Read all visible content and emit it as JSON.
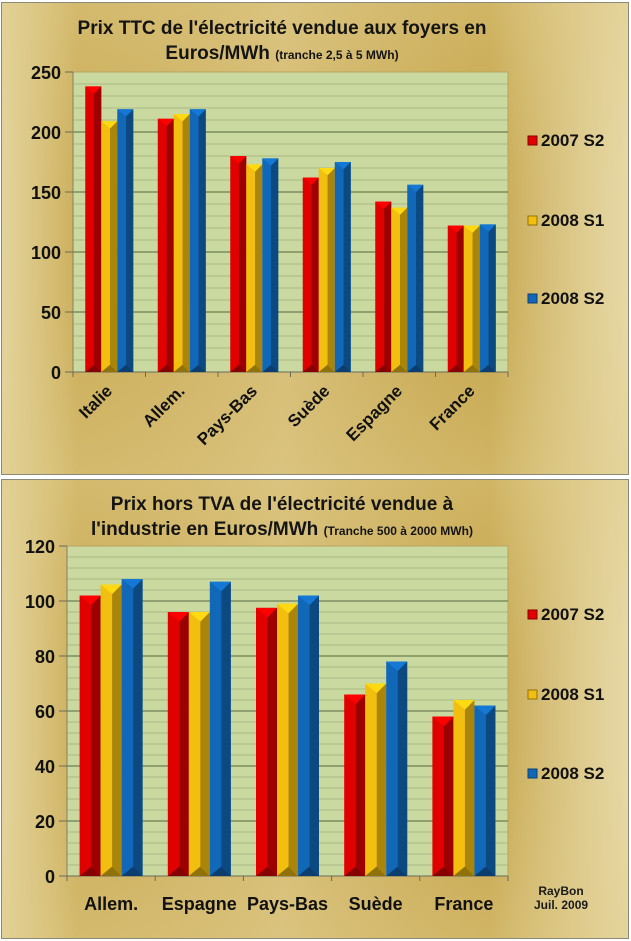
{
  "chart_data": [
    {
      "type": "bar",
      "title": "Prix TTC de l'électricité vendue aux foyers en Euros/MWh",
      "title_line1": "Prix TTC de l'électricité vendue aux foyers en",
      "title_line2": "Euros/MWh",
      "subtitle": "(tranche 2,5 à 5 MWh)",
      "xlabel": "",
      "ylabel": "",
      "ylim": [
        0,
        250
      ],
      "yticks": [
        0,
        50,
        100,
        150,
        200,
        250
      ],
      "ytick_labels": [
        "0",
        "50",
        "100",
        "150",
        "200",
        "250"
      ],
      "grid": true,
      "legend_position": "right",
      "categories": [
        "Italie",
        "Allem.",
        "Pays-Bas",
        "Suède",
        "Espagne",
        "France"
      ],
      "series": [
        {
          "name": "2007 S2",
          "color": "#e00000",
          "values": [
            238,
            211,
            180,
            162,
            142,
            122
          ]
        },
        {
          "name": "2008 S1",
          "color": "#f2be10",
          "values": [
            209,
            215,
            173,
            170,
            137,
            122
          ]
        },
        {
          "name": "2008 S2",
          "color": "#1268b8",
          "values": [
            219,
            219,
            178,
            175,
            156,
            123
          ]
        }
      ]
    },
    {
      "type": "bar",
      "title": "Prix hors TVA de l'électricité vendue à l'industrie en Euros/MWh",
      "title_line1": "Prix hors TVA de l'électricité vendue à",
      "title_line2": "l'industrie en Euros/MWh",
      "subtitle": "(Tranche 500 à 2000 MWh)",
      "xlabel": "",
      "ylabel": "",
      "ylim": [
        0,
        120
      ],
      "yticks": [
        0,
        20,
        40,
        60,
        80,
        100,
        120
      ],
      "ytick_labels": [
        "0",
        "20",
        "40",
        "60",
        "80",
        "100",
        "120"
      ],
      "grid": true,
      "legend_position": "right",
      "categories": [
        "Allem.",
        "Espagne",
        "Pays-Bas",
        "Suède",
        "France"
      ],
      "series": [
        {
          "name": "2007 S2",
          "color": "#e00000",
          "values": [
            102,
            96,
            97.5,
            66,
            58
          ]
        },
        {
          "name": "2008 S1",
          "color": "#f2be10",
          "values": [
            106,
            96,
            99,
            70,
            64
          ]
        },
        {
          "name": "2008 S2",
          "color": "#1268b8",
          "values": [
            108,
            107,
            102,
            78,
            62
          ]
        }
      ]
    }
  ],
  "credit": {
    "author": "RayBon",
    "date": "Juil. 2009"
  },
  "colors": {
    "plot_bg": "#c9d9a0",
    "grid": "#9fae7c",
    "major_grid": "#6f7d50"
  }
}
